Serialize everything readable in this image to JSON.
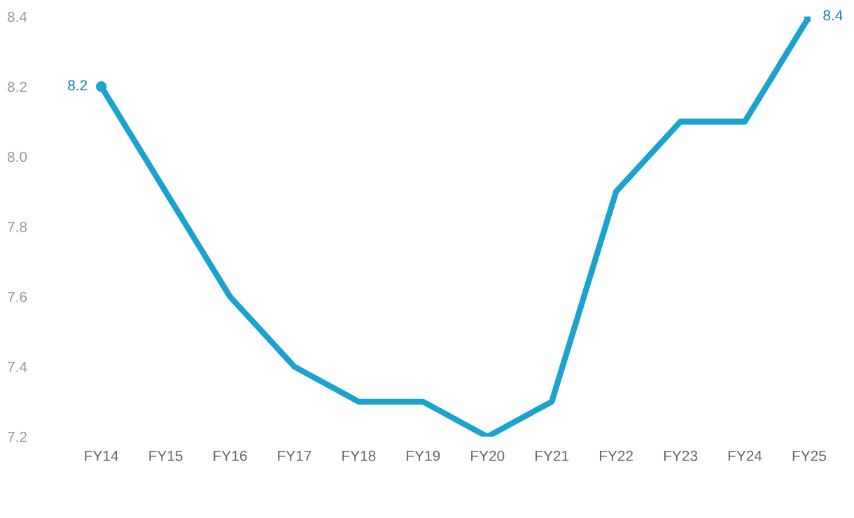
{
  "chart_data": {
    "type": "line",
    "categories": [
      "FY14",
      "FY15",
      "FY16",
      "FY17",
      "FY18",
      "FY19",
      "FY20",
      "FY21",
      "FY22",
      "FY23",
      "FY24",
      "FY25"
    ],
    "series": [
      {
        "color": "#1aa3cf",
        "values": [
          8.2,
          7.9,
          7.6,
          7.4,
          7.3,
          7.3,
          7.2,
          7.3,
          7.9,
          8.1,
          8.1,
          8.4
        ],
        "value_labels": [
          "8.2",
          null,
          null,
          null,
          null,
          null,
          null,
          null,
          null,
          null,
          null,
          "8.4"
        ]
      }
    ],
    "ylim": [
      7.2,
      8.4
    ],
    "yticks": [
      {
        "value": 7.2,
        "label": "7.2"
      },
      {
        "value": 7.4,
        "label": "7.4"
      },
      {
        "value": 7.6,
        "label": "7.6"
      },
      {
        "value": 7.8,
        "label": "7.8"
      },
      {
        "value": 8.0,
        "label": "8.0"
      },
      {
        "value": 8.2,
        "label": "8.2"
      },
      {
        "value": 8.4,
        "label": "8.4"
      }
    ],
    "grid": false,
    "legend": false,
    "marker": "none",
    "line_style": "solid"
  }
}
